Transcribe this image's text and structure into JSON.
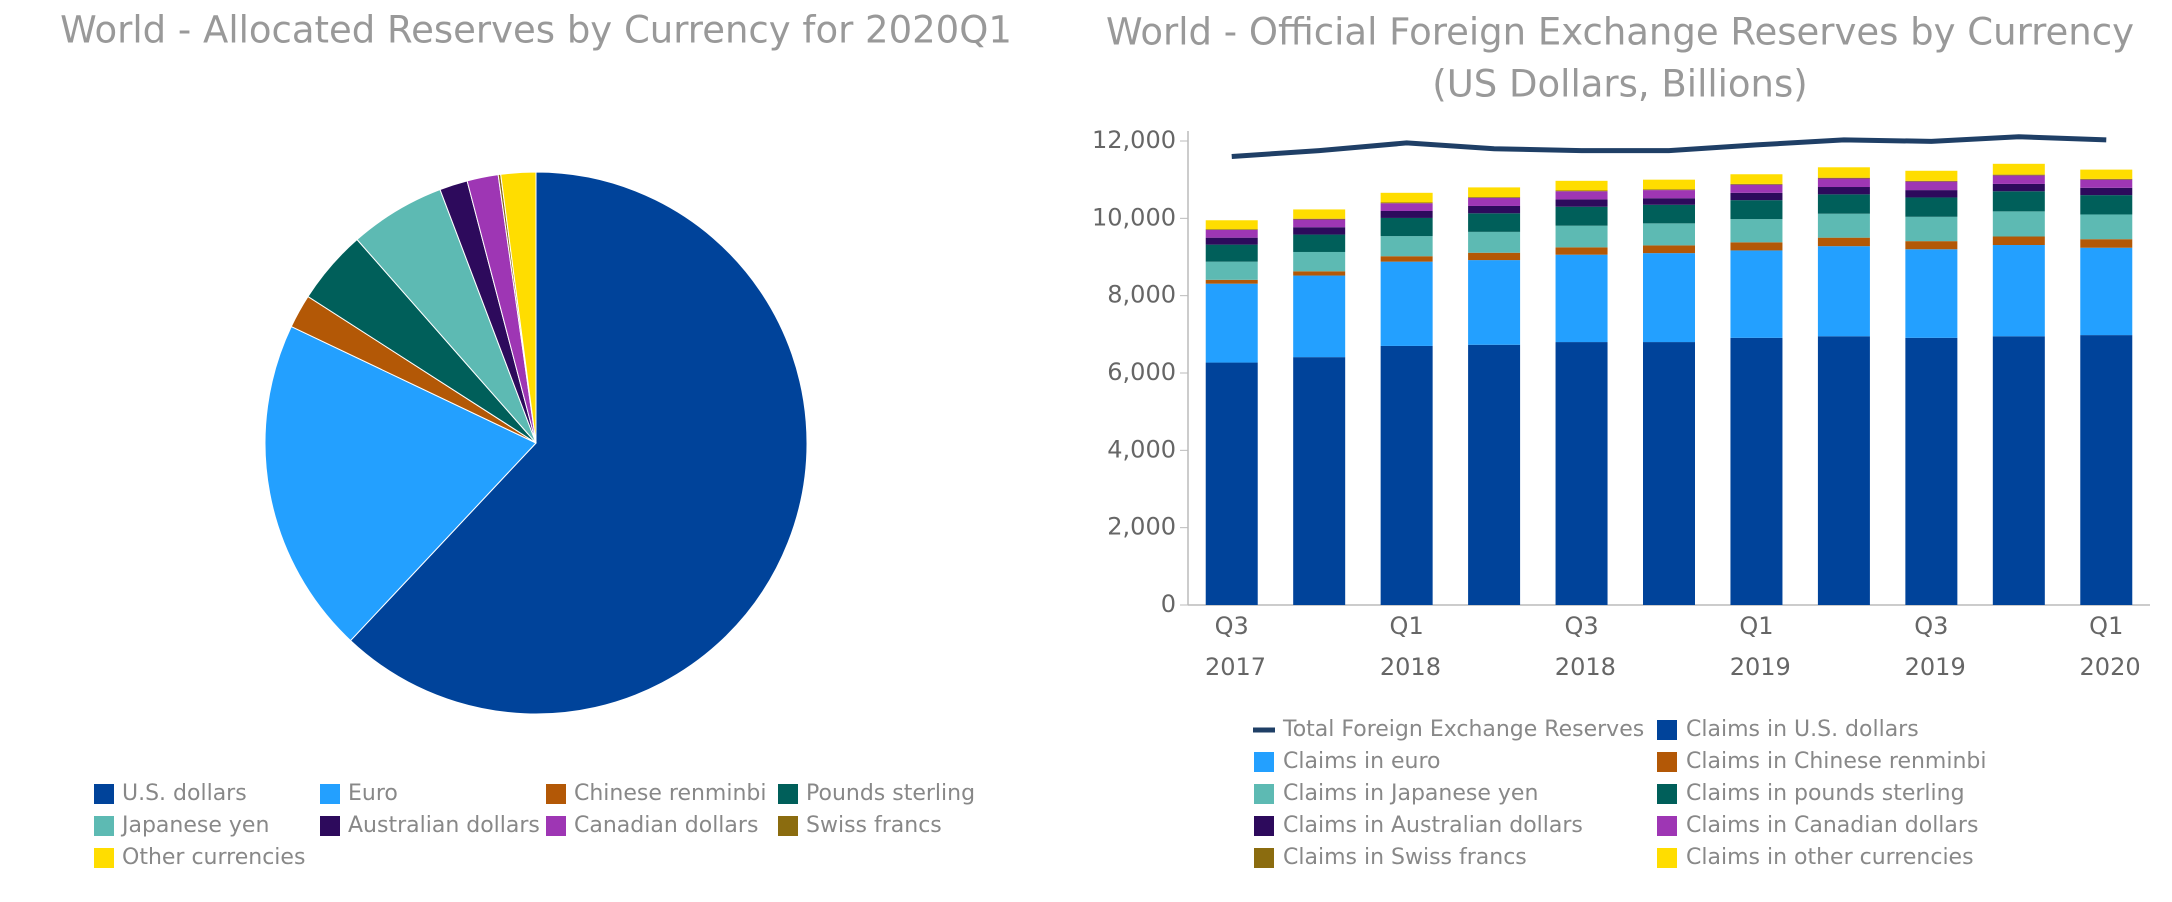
{
  "chart_data": [
    {
      "type": "pie",
      "title": "World - Allocated Reserves by Currency for 2020Q1",
      "categories": [
        "U.S. dollars",
        "Euro",
        "Chinese renminbi",
        "Pounds sterling",
        "Japanese yen",
        "Australian dollars",
        "Canadian dollars",
        "Swiss francs",
        "Other currencies"
      ],
      "values": [
        61.99,
        20.07,
        2.02,
        4.43,
        5.72,
        1.67,
        1.86,
        0.15,
        2.08
      ],
      "colors": [
        "#00439a",
        "#23a0ff",
        "#b35806",
        "#005f5a",
        "#5dbab3",
        "#2d0a5c",
        "#9e36b4",
        "#8b6c0f",
        "#ffdd00"
      ],
      "legend": "bottom"
    },
    {
      "type": "bar",
      "stacked": true,
      "title": "World - Official Foreign Exchange Reserves by Currency",
      "subtitle": "(US Dollars, Billions)",
      "categories": [
        "Q3 2017",
        null,
        "Q1 2018",
        null,
        "Q3 2018",
        null,
        "Q1 2019",
        null,
        "Q3 2019",
        null,
        "Q1 2020"
      ],
      "ylim": [
        0,
        12000
      ],
      "yticks": [
        0,
        {
          "value": 2000,
          "label": "2,000"
        },
        {
          "value": 4000,
          "label": "4,000"
        },
        {
          "value": 6000,
          "label": "6,000"
        },
        {
          "value": 8000,
          "label": "8,000"
        },
        {
          "value": 10000,
          "label": "10,000"
        },
        {
          "value": 12000,
          "label": "12,000"
        }
      ],
      "legend": "bottom",
      "series": [
        {
          "name": "Total Foreign Exchange Reserves",
          "type": "line",
          "color": "#1f3f66",
          "values": [
            11600,
            11750,
            11950,
            11800,
            11750,
            11750,
            11900,
            12030,
            11990,
            12110,
            12030
          ]
        },
        {
          "name": "Claims in U.S. dollars",
          "color": "#00439a",
          "values": [
            6270,
            6410,
            6700,
            6730,
            6800,
            6800,
            6910,
            6950,
            6910,
            6950,
            6980
          ]
        },
        {
          "name": "Claims in euro",
          "color": "#23a0ff",
          "values": [
            2040,
            2110,
            2180,
            2190,
            2260,
            2300,
            2260,
            2330,
            2290,
            2360,
            2260
          ]
        },
        {
          "name": "Claims in Chinese renminbi",
          "color": "#b35806",
          "values": [
            100,
            110,
            140,
            190,
            190,
            200,
            210,
            220,
            210,
            220,
            220
          ]
        },
        {
          "name": "Claims in Japanese yen",
          "color": "#5dbab3",
          "values": [
            470,
            500,
            520,
            540,
            560,
            570,
            600,
            620,
            630,
            650,
            640
          ]
        },
        {
          "name": "Claims in pounds sterling",
          "color": "#005f5a",
          "values": [
            440,
            450,
            470,
            480,
            490,
            480,
            490,
            500,
            500,
            520,
            500
          ]
        },
        {
          "name": "Claims in Australian dollars",
          "color": "#2d0a5c",
          "values": [
            180,
            190,
            180,
            190,
            190,
            170,
            190,
            190,
            190,
            190,
            190
          ]
        },
        {
          "name": "Claims in Canadian dollars",
          "color": "#9e36b4",
          "values": [
            200,
            200,
            200,
            210,
            210,
            210,
            210,
            220,
            220,
            220,
            210
          ]
        },
        {
          "name": "Claims in Swiss francs",
          "color": "#8b6c0f",
          "values": [
            20,
            20,
            20,
            20,
            20,
            20,
            20,
            20,
            20,
            20,
            20
          ]
        },
        {
          "name": "Claims in other currencies",
          "color": "#ffdd00",
          "values": [
            230,
            240,
            250,
            250,
            250,
            250,
            250,
            270,
            260,
            280,
            240
          ]
        }
      ]
    }
  ]
}
